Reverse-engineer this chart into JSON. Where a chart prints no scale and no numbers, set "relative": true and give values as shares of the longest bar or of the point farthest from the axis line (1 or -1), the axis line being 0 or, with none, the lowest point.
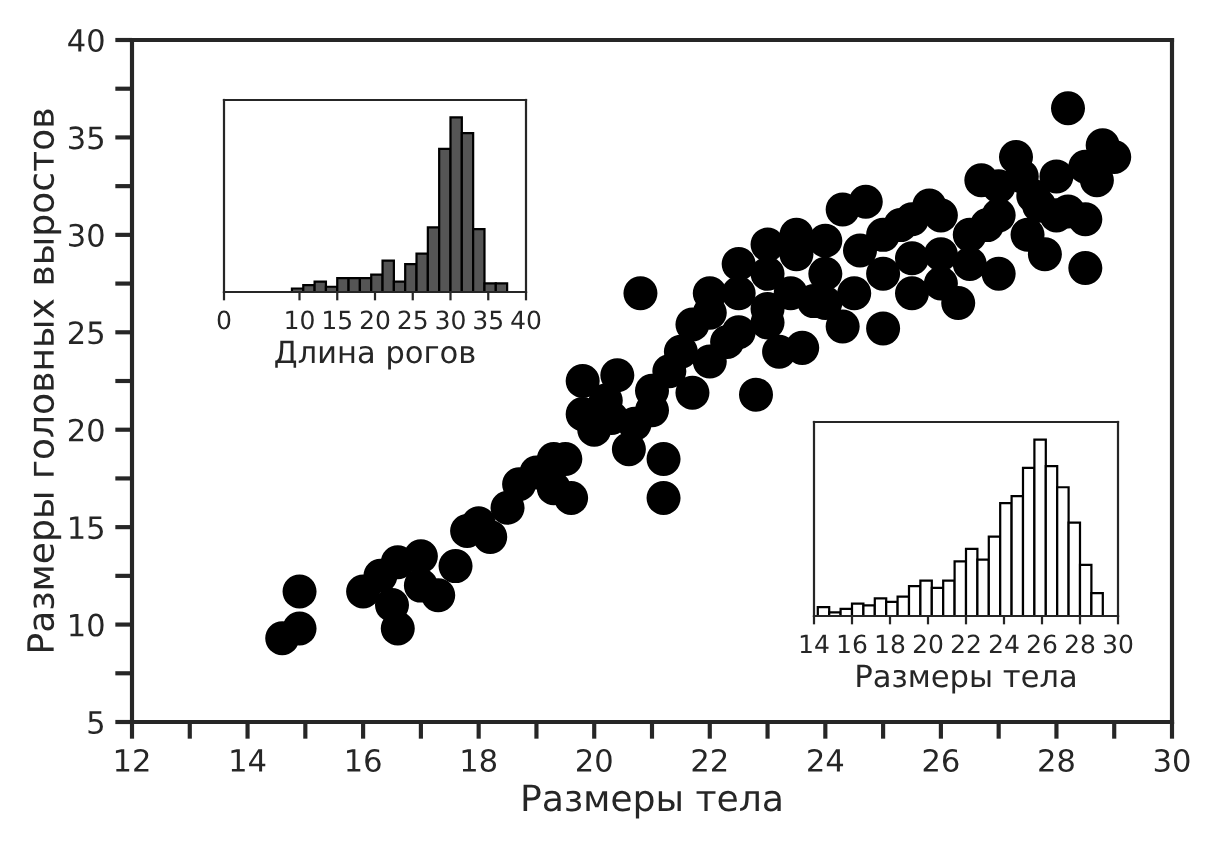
{
  "chart_data": [
    {
      "type": "bar",
      "xlabel": "Длина рогов",
      "relative": true,
      "tick_labels": "x",
      "xlim": [
        0,
        40
      ],
      "xticks": [
        0,
        10,
        15,
        20,
        25,
        30,
        35,
        40
      ],
      "color": "#555555",
      "x": [
        9.75,
        11.25,
        12.75,
        14.25,
        15.75,
        17.25,
        18.75,
        20.25,
        21.75,
        23.25,
        24.75,
        26.25,
        27.75,
        29.25,
        30.75,
        32.25,
        33.75,
        35.25,
        36.75
      ],
      "values": [
        0.02,
        0.04,
        0.06,
        0.03,
        0.08,
        0.08,
        0.08,
        0.1,
        0.18,
        0.06,
        0.16,
        0.22,
        0.37,
        0.82,
        1.0,
        0.91,
        0.36,
        0.05,
        0.05
      ]
    },
    {
      "type": "bar",
      "xlabel": "Размеры тела",
      "relative": true,
      "tick_labels": "x",
      "xlim": [
        14,
        30
      ],
      "xticks": [
        14,
        16,
        18,
        20,
        22,
        24,
        26,
        28,
        30
      ],
      "color": "#ffffff",
      "x": [
        14.5,
        15.1,
        15.7,
        16.3,
        16.9,
        17.5,
        18.1,
        18.7,
        19.3,
        19.9,
        20.5,
        21.1,
        21.7,
        22.3,
        22.9,
        23.5,
        24.1,
        24.7,
        25.3,
        25.9,
        26.5,
        27.1,
        27.7,
        28.3,
        28.9
      ],
      "values": [
        0.05,
        0.02,
        0.04,
        0.07,
        0.06,
        0.1,
        0.08,
        0.11,
        0.17,
        0.2,
        0.16,
        0.2,
        0.31,
        0.38,
        0.32,
        0.45,
        0.64,
        0.68,
        0.84,
        1.0,
        0.85,
        0.73,
        0.53,
        0.29,
        0.13
      ]
    },
    {
      "type": "scatter",
      "xlabel": "Размеры тела",
      "ylabel": "Размеры головных выростов",
      "xlim": [
        12,
        30
      ],
      "ylim": [
        5,
        40
      ],
      "xticks": [
        12,
        14,
        16,
        18,
        20,
        22,
        24,
        26,
        28,
        30
      ],
      "yticks": [
        5,
        10,
        15,
        20,
        25,
        30,
        35,
        40
      ],
      "grid": false,
      "marker": "circle",
      "color": "#000000",
      "x": [
        14.6,
        14.9,
        14.9,
        16,
        16.3,
        16.5,
        16.6,
        16.6,
        17,
        17.3,
        17.6,
        17.8,
        18.2,
        18.5,
        18.7,
        19,
        19.3,
        19.6,
        19.5,
        20,
        19.8,
        19.8,
        20.2,
        20.4,
        20.6,
        20.7,
        21,
        21,
        21.3,
        21.2,
        21.2,
        20.8,
        21.7,
        22,
        21.7,
        22,
        22.5,
        22.5,
        23,
        22.8,
        23.2,
        23,
        23.5,
        23,
        23.4,
        24,
        24,
        24.3,
        25,
        24.5,
        25,
        25,
        25.3,
        25.5,
        26,
        26,
        26,
        26.5,
        27,
        27,
        27,
        27.5,
        27.8,
        28,
        28,
        28.2,
        28.5,
        28.8,
        29,
        28.7,
        28.5,
        27.3,
        27.4,
        26.7,
        25.8,
        24.7,
        24.3,
        23.5,
        22.5,
        22,
        23.8,
        26.3,
        25.5,
        24.6,
        27.7,
        28.5,
        26.8,
        24,
        23.6,
        21.5,
        20.3,
        19.3,
        18,
        17,
        22.3,
        23,
        25.5,
        26.5,
        27.6,
        28.2
      ],
      "values": [
        9.3,
        9.8,
        11.7,
        11.7,
        12.5,
        11,
        9.8,
        13.2,
        12,
        11.5,
        13,
        14.8,
        14.5,
        16,
        17.2,
        17.8,
        18.5,
        16.5,
        18.5,
        20,
        22.5,
        20.8,
        21.5,
        22.8,
        19,
        20.3,
        21,
        22,
        23,
        16.5,
        18.5,
        27,
        21.9,
        23.5,
        25.4,
        26,
        25,
        27,
        25.5,
        21.8,
        24,
        28,
        29,
        29.5,
        27,
        28,
        29.7,
        25.3,
        25.2,
        27,
        28,
        30,
        30.5,
        27,
        27.5,
        29,
        31,
        30,
        28,
        31,
        32.5,
        30,
        29,
        31,
        33,
        36.5,
        33.5,
        34.6,
        34,
        32.8,
        28.3,
        34,
        33,
        32.8,
        31.5,
        31.7,
        31.3,
        30,
        28.5,
        27,
        26.6,
        26.5,
        28.8,
        29.2,
        31.5,
        30.8,
        30.5,
        26.5,
        24.2,
        24,
        20.6,
        17,
        15.2,
        13.5,
        24.5,
        26.2,
        30.8,
        28.5,
        32,
        31.2
      ]
    }
  ]
}
